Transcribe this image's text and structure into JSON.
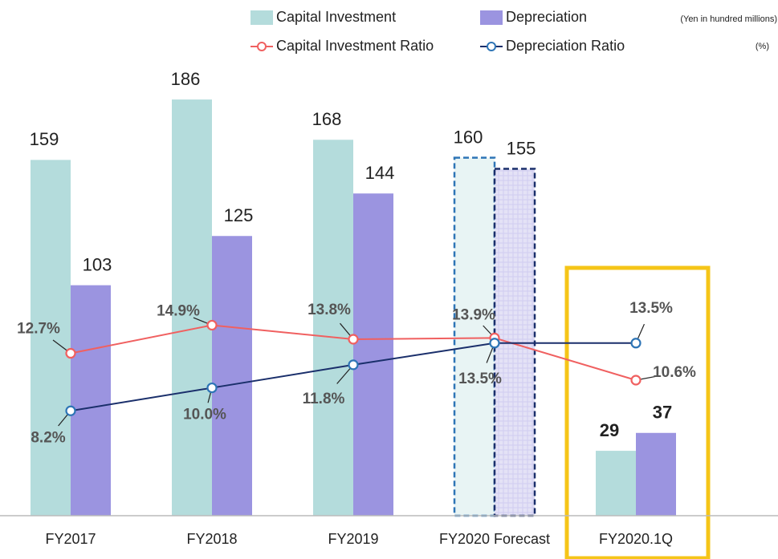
{
  "chart_data": {
    "type": "bar_line",
    "units": "(Yen in hundred millions)",
    "units2": "(%)",
    "categories": [
      "FY2017",
      "FY2018",
      "FY2019",
      "FY2020 Forecast",
      "FY2020.1Q"
    ],
    "series": [
      {
        "name": "Capital Investment",
        "color": "#b4dcdc",
        "type": "bar",
        "values": [
          159,
          186,
          168,
          160,
          29
        ],
        "dashed": [
          false,
          false,
          false,
          true,
          false
        ],
        "dash_color": "#2e75b6"
      },
      {
        "name": "Depreciation",
        "color": "#9b94e0",
        "type": "bar",
        "values": [
          103,
          125,
          144,
          155,
          37
        ],
        "dashed": [
          false,
          false,
          false,
          true,
          false
        ],
        "dash_color": "#1a2f6b"
      },
      {
        "name": "Capital Investment Ratio",
        "color": "#f06060",
        "type": "line",
        "axis": "y2",
        "values": [
          12.7,
          14.9,
          13.8,
          13.9,
          10.6
        ],
        "value_labels": [
          "12.7%",
          "14.9%",
          "13.8%",
          "13.9%",
          "10.6%"
        ]
      },
      {
        "name": "Depreciation Ratio",
        "color": "#1a2f6b",
        "marker_color": "#2e75b6",
        "type": "line",
        "axis": "y2",
        "values": [
          8.2,
          10.0,
          11.8,
          13.5,
          13.5
        ],
        "value_labels": [
          "8.2%",
          "10.0%",
          "11.8%",
          "13.5%",
          "13.5%"
        ]
      }
    ],
    "ylim": [
      0,
      200
    ],
    "y2lim": [
      0,
      35
    ],
    "highlight": 4,
    "highlight_color": "#f5c518"
  }
}
